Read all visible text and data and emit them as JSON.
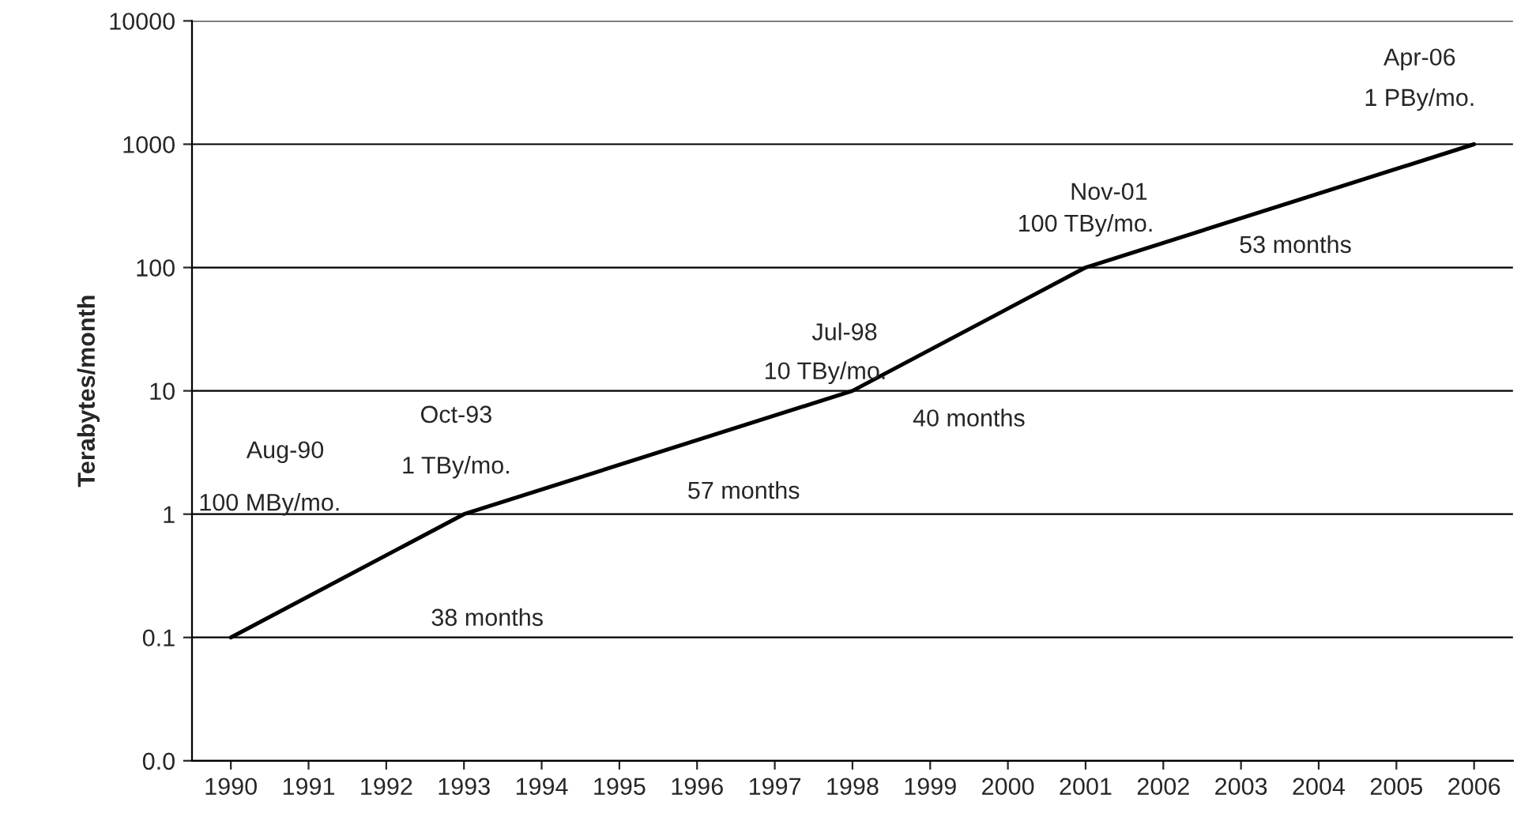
{
  "chart_data": {
    "type": "line",
    "ylabel": "Terabytes/month",
    "x": [
      1990,
      1993,
      1998,
      2001,
      2006
    ],
    "series": [
      {
        "color": "#000000",
        "values": [
          0.1,
          1,
          10,
          100,
          1000
        ]
      }
    ],
    "log": "y",
    "grid": "y",
    "marker": "none",
    "line_style": "solid",
    "xlim": [
      1989.5,
      2006.5
    ],
    "xticks": [
      1990,
      1991,
      1992,
      1993,
      1994,
      1995,
      1996,
      1997,
      1998,
      1999,
      2000,
      2001,
      2002,
      2003,
      2004,
      2005,
      2006
    ],
    "ylim": [
      0.01,
      10000
    ],
    "yticks": [
      {
        "value": 0.01,
        "label": "0.0"
      },
      0.1,
      1,
      10,
      100,
      1000,
      10000
    ],
    "annotations": [
      "Aug-90",
      "100 MBy/mo.",
      "38 months",
      "Oct-93",
      "1 TBy/mo.",
      "57 months",
      "Jul-98",
      "10 TBy/mo.",
      "40 months",
      "Nov-01",
      "100 TBy/mo.",
      "53 months",
      "Apr-06",
      "1 PBy/mo."
    ]
  }
}
